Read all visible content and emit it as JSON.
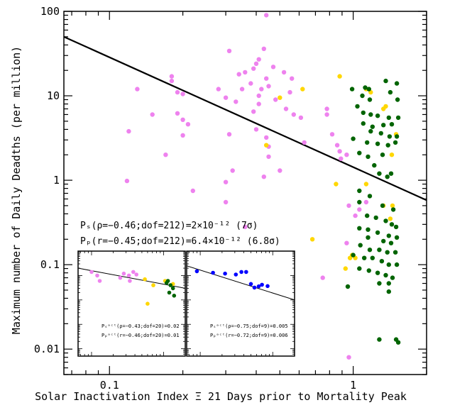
{
  "chart_data": {
    "type": "scatter",
    "xlabel": "Solar Inactivation Index Ξ 21 Days prior to Mortality Peak",
    "ylabel": "Maximum number of Daily Deadths (per million)",
    "xscale": "log",
    "yscale": "log",
    "xlim": [
      0.065,
      2.0
    ],
    "ylim": [
      0.005,
      100
    ],
    "x_ticks": [
      {
        "value": 0.1,
        "label": "0.1"
      },
      {
        "value": 1,
        "label": "1"
      }
    ],
    "y_ticks": [
      {
        "value": 0.01,
        "label": "0.01"
      },
      {
        "value": 0.1,
        "label": "0.1"
      },
      {
        "value": 1,
        "label": "1"
      },
      {
        "value": 10,
        "label": "10"
      },
      {
        "value": 100,
        "label": "100"
      }
    ],
    "colors": {
      "violet": "#ee82ee",
      "gold": "#ffd700",
      "green": "#006400",
      "blue": "#0000ff",
      "line": "#000000"
    },
    "fit_line": {
      "x": [
        0.065,
        2.0
      ],
      "y": [
        50,
        0.58
      ]
    },
    "stats": {
      "line1": "Pₛ(ρ=−0.46;dof=212)=2×10⁻¹² (7σ)",
      "line2": "Pₚ(r=−0.45;dof=212)=6.4×10⁻¹² (6.8σ)"
    },
    "series": [
      {
        "color": "violet",
        "points": [
          [
            0.44,
            90
          ],
          [
            0.43,
            36
          ],
          [
            0.31,
            34
          ],
          [
            0.41,
            27
          ],
          [
            0.4,
            24
          ],
          [
            0.47,
            22
          ],
          [
            0.39,
            21
          ],
          [
            0.36,
            19
          ],
          [
            0.52,
            19
          ],
          [
            0.34,
            18
          ],
          [
            0.44,
            16
          ],
          [
            0.56,
            16
          ],
          [
            0.18,
            17
          ],
          [
            0.18,
            15
          ],
          [
            0.13,
            12
          ],
          [
            0.38,
            14
          ],
          [
            0.45,
            13
          ],
          [
            0.35,
            12
          ],
          [
            0.28,
            12
          ],
          [
            0.42,
            12
          ],
          [
            0.19,
            11
          ],
          [
            0.55,
            11
          ],
          [
            0.2,
            10.5
          ],
          [
            0.41,
            10
          ],
          [
            0.3,
            9.5
          ],
          [
            0.48,
            9
          ],
          [
            0.33,
            8.5
          ],
          [
            0.41,
            8
          ],
          [
            0.53,
            7
          ],
          [
            0.39,
            6.5
          ],
          [
            0.15,
            6.0
          ],
          [
            0.19,
            6.2
          ],
          [
            0.57,
            6
          ],
          [
            0.61,
            5.5
          ],
          [
            0.78,
            7
          ],
          [
            0.2,
            5.2
          ],
          [
            0.21,
            4.6
          ],
          [
            0.12,
            3.8
          ],
          [
            0.2,
            3.4
          ],
          [
            0.31,
            3.5
          ],
          [
            0.4,
            4
          ],
          [
            0.44,
            3.2
          ],
          [
            0.45,
            2.5
          ],
          [
            0.63,
            2.8
          ],
          [
            0.17,
            2.0
          ],
          [
            0.78,
            6
          ],
          [
            0.82,
            3.5
          ],
          [
            0.89,
            1.8
          ],
          [
            0.86,
            2.6
          ],
          [
            0.32,
            1.3
          ],
          [
            0.3,
            0.95
          ],
          [
            0.43,
            1.1
          ],
          [
            0.5,
            1.3
          ],
          [
            0.45,
            1.9
          ],
          [
            0.118,
            0.98
          ],
          [
            0.3,
            0.55
          ],
          [
            0.22,
            0.75
          ],
          [
            0.96,
            0.5
          ],
          [
            0.94,
            0.18
          ],
          [
            1.02,
            0.38
          ],
          [
            0.94,
            2.0
          ],
          [
            0.88,
            2.2
          ],
          [
            0.36,
            0.28
          ],
          [
            0.75,
            0.07
          ],
          [
            0.5,
            0.08
          ],
          [
            0.96,
            0.008
          ],
          [
            1.06,
            0.45
          ],
          [
            1.13,
            0.55
          ]
        ]
      },
      {
        "color": "gold",
        "points": [
          [
            0.88,
            17
          ],
          [
            0.62,
            12
          ],
          [
            0.5,
            9.5
          ],
          [
            1.13,
            12
          ],
          [
            1.18,
            11
          ],
          [
            1.33,
            7.0
          ],
          [
            1.36,
            7.5
          ],
          [
            1.5,
            3.5
          ],
          [
            1.44,
            2.0
          ],
          [
            0.44,
            2.6
          ],
          [
            1.13,
            0.9
          ],
          [
            1.33,
            0.5
          ],
          [
            1.42,
            0.35
          ],
          [
            0.85,
            0.9
          ],
          [
            1.45,
            0.5
          ],
          [
            0.68,
            0.2
          ],
          [
            0.93,
            0.09
          ],
          [
            0.97,
            0.12
          ],
          [
            1.02,
            0.12
          ],
          [
            0.99,
            0.13
          ]
        ]
      },
      {
        "color": "green",
        "points": [
          [
            0.99,
            12
          ],
          [
            1.12,
            12.5
          ],
          [
            1.16,
            12
          ],
          [
            1.36,
            15
          ],
          [
            1.42,
            11
          ],
          [
            1.09,
            10
          ],
          [
            1.17,
            9
          ],
          [
            1.51,
            14
          ],
          [
            1.52,
            9
          ],
          [
            1.04,
            7.5
          ],
          [
            1.1,
            6.3
          ],
          [
            1.18,
            6.0
          ],
          [
            1.26,
            5.8
          ],
          [
            1.4,
            5.5
          ],
          [
            1.53,
            5.5
          ],
          [
            1.1,
            4.7
          ],
          [
            1.2,
            4.3
          ],
          [
            1.33,
            4.5
          ],
          [
            1.44,
            4.6
          ],
          [
            1.18,
            3.8
          ],
          [
            1.3,
            3.6
          ],
          [
            1.41,
            3.3
          ],
          [
            1.51,
            3.3
          ],
          [
            1.0,
            3.1
          ],
          [
            1.14,
            2.8
          ],
          [
            1.26,
            2.7
          ],
          [
            1.39,
            2.6
          ],
          [
            1.49,
            2.8
          ],
          [
            1.06,
            2.1
          ],
          [
            1.15,
            1.9
          ],
          [
            1.32,
            2.0
          ],
          [
            1.22,
            1.5
          ],
          [
            1.28,
            1.2
          ],
          [
            1.38,
            1.1
          ],
          [
            1.43,
            1.2
          ],
          [
            1.06,
            0.75
          ],
          [
            1.17,
            0.65
          ],
          [
            1.06,
            0.55
          ],
          [
            1.32,
            0.5
          ],
          [
            1.46,
            0.45
          ],
          [
            1.14,
            0.38
          ],
          [
            1.24,
            0.36
          ],
          [
            1.36,
            0.33
          ],
          [
            1.44,
            0.3
          ],
          [
            1.5,
            0.28
          ],
          [
            1.06,
            0.27
          ],
          [
            1.15,
            0.26
          ],
          [
            1.26,
            0.24
          ],
          [
            1.4,
            0.22
          ],
          [
            1.51,
            0.21
          ],
          [
            1.15,
            0.21
          ],
          [
            1.33,
            0.19
          ],
          [
            1.43,
            0.18
          ],
          [
            1.07,
            0.17
          ],
          [
            1.17,
            0.15
          ],
          [
            1.28,
            0.15
          ],
          [
            1.38,
            0.14
          ],
          [
            1.49,
            0.14
          ],
          [
            1.0,
            0.13
          ],
          [
            1.11,
            0.12
          ],
          [
            1.2,
            0.12
          ],
          [
            1.31,
            0.11
          ],
          [
            1.4,
            0.1
          ],
          [
            1.51,
            0.1
          ],
          [
            1.06,
            0.09
          ],
          [
            1.16,
            0.085
          ],
          [
            1.26,
            0.08
          ],
          [
            1.36,
            0.075
          ],
          [
            1.45,
            0.07
          ],
          [
            0.95,
            0.055
          ],
          [
            1.28,
            0.06
          ],
          [
            1.4,
            0.06
          ],
          [
            1.4,
            0.048
          ],
          [
            1.28,
            0.013
          ],
          [
            1.5,
            0.013
          ],
          [
            1.53,
            0.012
          ]
        ]
      }
    ],
    "insets": [
      {
        "xlim": [
          0.065,
          2.0
        ],
        "ylim": [
          0.005,
          100
        ],
        "fit_line": {
          "x": [
            0.065,
            2.0
          ],
          "y": [
            20,
            3.0
          ]
        },
        "stat1": "Pₛᵃᶜᵗ(ρ=−0.43;dof=20)=0.02",
        "stat2": "Pₚᵃᶜᵗ(r=−0.46;dof=20)=0.01",
        "series": [
          {
            "color": "violet",
            "points": [
              [
                0.1,
                14
              ],
              [
                0.13,
                6
              ],
              [
                0.28,
                12
              ],
              [
                0.33,
                10
              ],
              [
                0.38,
                14
              ],
              [
                0.42,
                11
              ],
              [
                0.34,
                6
              ],
              [
                0.25,
                8
              ],
              [
                0.12,
                10
              ]
            ]
          },
          {
            "color": "gold",
            "points": [
              [
                0.55,
                7
              ],
              [
                0.72,
                4
              ],
              [
                1.05,
                6
              ],
              [
                1.35,
                4.5
              ],
              [
                0.6,
                0.7
              ]
            ]
          },
          {
            "color": "green",
            "points": [
              [
                1.1,
                5
              ],
              [
                1.25,
                4
              ],
              [
                1.35,
                3
              ],
              [
                1.2,
                2
              ],
              [
                1.4,
                1.5
              ],
              [
                1.15,
                6
              ]
            ]
          }
        ]
      },
      {
        "xlim": [
          0.065,
          2.0
        ],
        "ylim": [
          0.005,
          100
        ],
        "fit_line": {
          "x": [
            0.065,
            2.0
          ],
          "y": [
            25,
            1.0
          ]
        },
        "stat1": "Pₛᵃᶜᵗ(ρ=−0.75;dof=9)=0.005",
        "stat2": "Pₚᵃᶜᵗ(r=−0.72;dof=9)=0.006",
        "series": [
          {
            "color": "blue",
            "points": [
              [
                0.09,
                15
              ],
              [
                0.15,
                13
              ],
              [
                0.22,
                12
              ],
              [
                0.31,
                11
              ],
              [
                0.37,
                14
              ],
              [
                0.43,
                14
              ],
              [
                0.5,
                4.5
              ],
              [
                0.56,
                3.2
              ],
              [
                0.64,
                3.6
              ],
              [
                0.71,
                4.2
              ],
              [
                0.85,
                3.7
              ]
            ]
          }
        ]
      }
    ]
  }
}
